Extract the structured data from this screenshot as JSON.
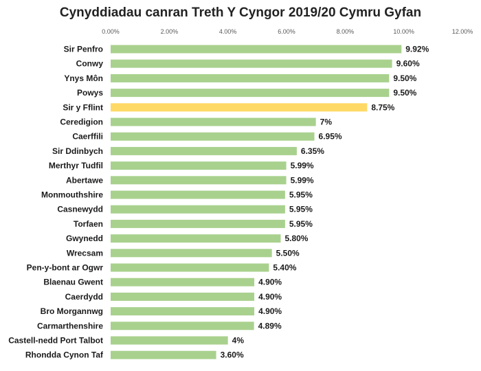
{
  "chart_data": {
    "type": "bar",
    "orientation": "horizontal",
    "title": "Cynyddiadau canran Treth Y Cyngor 2019/20 Cymru Gyfan",
    "xlabel": "",
    "ylabel": "",
    "xlim": [
      0,
      12
    ],
    "x_ticks": [
      "0.00%",
      "2.00%",
      "4.00%",
      "6.00%",
      "8.00%",
      "10.00%",
      "12.00%"
    ],
    "grid": false,
    "legend": "none",
    "categories": [
      "Sir Penfro",
      "Conwy",
      "Ynys Môn",
      "Powys",
      "Sir y Fflint",
      "Ceredigion",
      "Caerffili",
      "Sir Ddinbych",
      "Merthyr Tudfil",
      "Abertawe",
      "Monmouthshire",
      "Casnewydd",
      "Torfaen",
      "Gwynedd",
      "Wrecsam",
      "Pen-y-bont ar Ogwr",
      "Blaenau Gwent",
      "Caerdydd",
      "Bro Morgannwg",
      "Carmarthenshire",
      "Castell-nedd Port Talbot",
      "Rhondda Cynon Taf"
    ],
    "values": [
      9.92,
      9.6,
      9.5,
      9.5,
      8.75,
      7,
      6.95,
      6.35,
      5.99,
      5.99,
      5.95,
      5.95,
      5.95,
      5.8,
      5.5,
      5.4,
      4.9,
      4.9,
      4.9,
      4.89,
      4,
      3.6
    ],
    "data_labels": [
      "9.92%",
      "9.60%",
      "9.50%",
      "9.50%",
      "8.75%",
      "7%",
      "6.95%",
      "6.35%",
      "5.99%",
      "5.99%",
      "5.95%",
      "5.95%",
      "5.95%",
      "5.80%",
      "5.50%",
      "5.40%",
      "4.90%",
      "4.90%",
      "4.90%",
      "4.89%",
      "4%",
      "3.60%"
    ],
    "colors": {
      "default": "#a9d18e",
      "highlight": "#ffd966"
    },
    "highlight_category": "Sir y Fflint"
  }
}
